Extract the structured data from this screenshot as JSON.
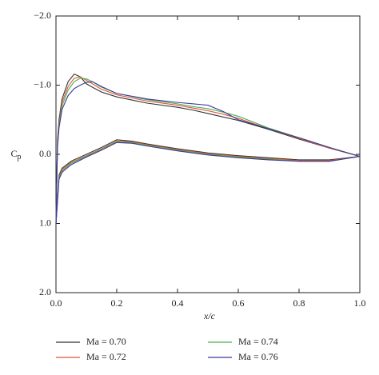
{
  "chart_data": {
    "type": "line",
    "xlabel": "x/c",
    "ylabel": "C",
    "ylabel_sub": "p",
    "x": [
      1.0,
      0.9,
      0.8,
      0.7,
      0.6,
      0.55,
      0.5,
      0.45,
      0.4,
      0.3,
      0.2,
      0.15,
      0.12,
      0.1,
      0.08,
      0.06,
      0.04,
      0.02,
      0.01,
      0.005,
      0,
      0.01,
      0.02,
      0.05,
      0.1,
      0.15,
      0.2,
      0.25,
      0.3,
      0.4,
      0.5,
      0.6,
      0.7,
      0.8,
      0.9,
      1.0
    ],
    "series": [
      {
        "name": "Ma = 0.70",
        "color": "#333333",
        "values": [
          0.03,
          -0.09,
          -0.22,
          -0.36,
          -0.49,
          -0.54,
          -0.59,
          -0.64,
          -0.68,
          -0.74,
          -0.83,
          -0.9,
          -0.97,
          -1.02,
          -1.12,
          -1.16,
          -1.05,
          -0.8,
          -0.5,
          -0.2,
          1.0,
          0.3,
          0.2,
          0.1,
          0.0,
          -0.1,
          -0.21,
          -0.19,
          -0.15,
          -0.08,
          -0.02,
          0.02,
          0.05,
          0.08,
          0.08,
          0.03
        ]
      },
      {
        "name": "Ma = 0.72",
        "color": "#e0533a",
        "values": [
          0.03,
          -0.09,
          -0.23,
          -0.37,
          -0.52,
          -0.58,
          -0.63,
          -0.67,
          -0.71,
          -0.77,
          -0.86,
          -0.94,
          -1.02,
          -1.07,
          -1.12,
          -1.1,
          -0.98,
          -0.75,
          -0.45,
          -0.15,
          1.0,
          0.32,
          0.22,
          0.12,
          0.02,
          -0.08,
          -0.19,
          -0.18,
          -0.14,
          -0.07,
          -0.01,
          0.03,
          0.06,
          0.09,
          0.09,
          0.03
        ]
      },
      {
        "name": "Ma = 0.74",
        "color": "#4caf50",
        "values": [
          0.03,
          -0.1,
          -0.24,
          -0.38,
          -0.55,
          -0.61,
          -0.66,
          -0.69,
          -0.73,
          -0.79,
          -0.88,
          -0.97,
          -1.05,
          -1.09,
          -1.1,
          -1.05,
          -0.93,
          -0.7,
          -0.42,
          -0.12,
          1.0,
          0.34,
          0.24,
          0.13,
          0.03,
          -0.07,
          -0.18,
          -0.17,
          -0.13,
          -0.06,
          0.0,
          0.04,
          0.07,
          0.1,
          0.1,
          0.03
        ]
      },
      {
        "name": "Ma = 0.76",
        "color": "#3b3b9e",
        "values": [
          0.03,
          -0.1,
          -0.24,
          -0.37,
          -0.5,
          -0.62,
          -0.71,
          -0.73,
          -0.75,
          -0.8,
          -0.88,
          -0.98,
          -1.05,
          -1.04,
          -1.0,
          -0.95,
          -0.85,
          -0.65,
          -0.38,
          -0.1,
          1.0,
          0.36,
          0.26,
          0.15,
          0.04,
          -0.06,
          -0.17,
          -0.16,
          -0.12,
          -0.05,
          0.01,
          0.05,
          0.08,
          0.1,
          0.1,
          0.03
        ]
      }
    ],
    "xlim": [
      0,
      1
    ],
    "xticks": [
      {
        "value": 0,
        "label": "0.0"
      },
      0.2,
      0.4,
      0.6,
      0.8,
      {
        "value": 1,
        "label": "1.0"
      }
    ],
    "ylim": [
      -2,
      2
    ],
    "y_inverted": true,
    "yticks": [
      {
        "value": -2,
        "label": "−2.0"
      },
      {
        "value": -1,
        "label": "−1.0"
      },
      {
        "value": 0,
        "label": "0.0"
      },
      {
        "value": 1,
        "label": "1.0"
      },
      {
        "value": 2,
        "label": "2.0"
      }
    ],
    "grid": false,
    "legend": "bottom"
  }
}
